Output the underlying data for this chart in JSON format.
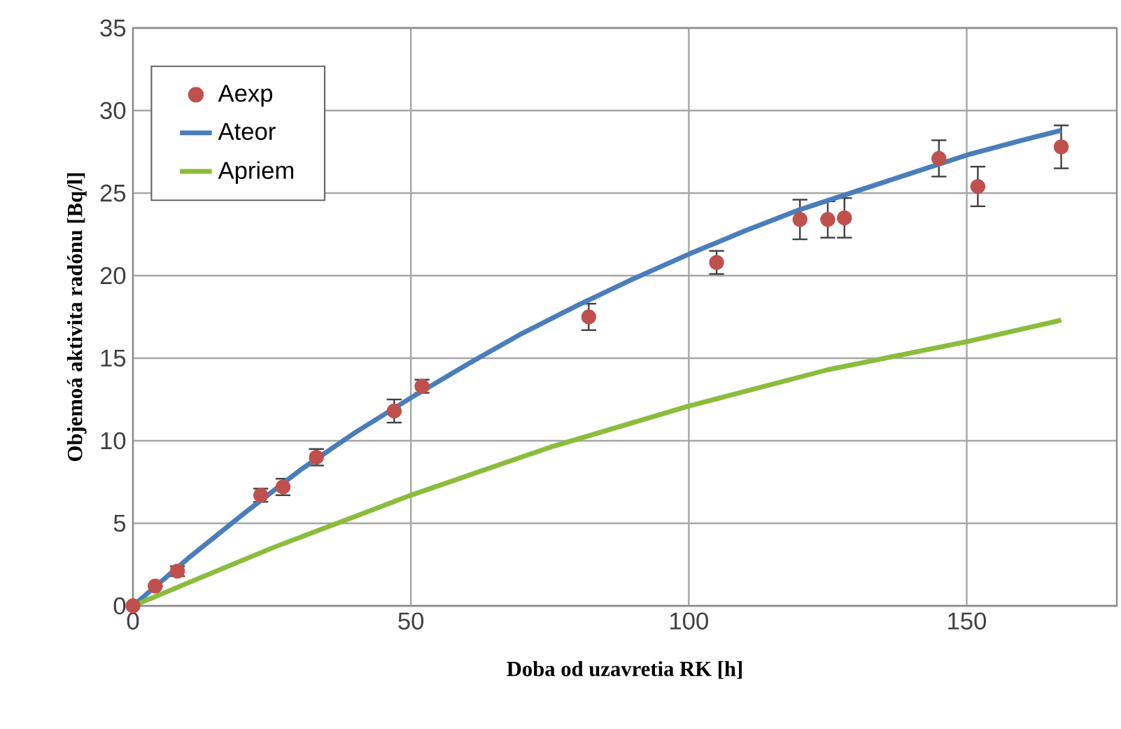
{
  "chart_data": {
    "type": "line",
    "xlabel": "Doba od uzavretia RK [h]",
    "ylabel": "Objemoá aktivita radónu [Bq/l]",
    "xlim": [
      0,
      177
    ],
    "ylim": [
      0,
      35
    ],
    "xticks": [
      0,
      50,
      100,
      150
    ],
    "yticks": [
      0,
      5,
      10,
      15,
      20,
      25,
      30,
      35
    ],
    "grid": true,
    "legend": "top left",
    "marker": "circle",
    "series": [
      {
        "name": "Aexp",
        "type": "scatter",
        "color": "#c0504d",
        "x": [
          0,
          4,
          8,
          23,
          27,
          33,
          47,
          52,
          82,
          105,
          120,
          125,
          128,
          145,
          152,
          167
        ],
        "values": [
          0,
          1.2,
          2.1,
          6.7,
          7.2,
          9.0,
          11.8,
          13.3,
          17.5,
          20.8,
          23.4,
          23.4,
          23.5,
          27.1,
          25.4,
          27.8
        ],
        "errors": [
          null,
          null,
          0.3,
          0.4,
          0.5,
          0.5,
          0.7,
          0.4,
          0.8,
          0.7,
          1.2,
          1.1,
          1.2,
          1.1,
          1.2,
          1.3
        ]
      },
      {
        "name": "Ateor",
        "marker": "none",
        "color": "#4a7ebb",
        "x": [
          0,
          10,
          20,
          30,
          40,
          50,
          60,
          70,
          80,
          90,
          100,
          110,
          120,
          130,
          140,
          150,
          160,
          167
        ],
        "values": [
          0,
          2.9,
          5.6,
          8.2,
          10.5,
          12.6,
          14.6,
          16.5,
          18.2,
          19.8,
          21.3,
          22.7,
          24.0,
          25.1,
          26.2,
          27.3,
          28.2,
          28.8
        ]
      },
      {
        "name": "Apriem",
        "marker": "none",
        "color": "#8cbc3c",
        "x": [
          0,
          25,
          50,
          75,
          100,
          125,
          150,
          167
        ],
        "values": [
          0,
          3.5,
          6.7,
          9.6,
          12.1,
          14.3,
          16.0,
          17.3
        ]
      }
    ]
  }
}
